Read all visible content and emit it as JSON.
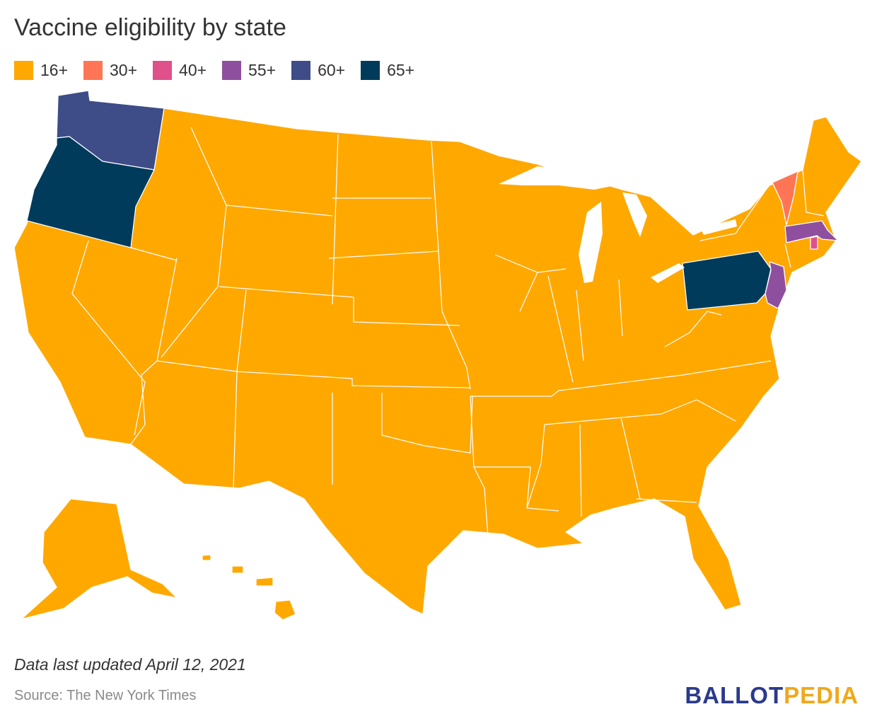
{
  "title": "Vaccine eligibility by state",
  "legend": [
    {
      "label": "16+",
      "color": "#FFA800"
    },
    {
      "label": "30+",
      "color": "#FF7556"
    },
    {
      "label": "40+",
      "color": "#E0508A"
    },
    {
      "label": "55+",
      "color": "#8E4F9E"
    },
    {
      "label": "60+",
      "color": "#3E4C87"
    },
    {
      "label": "65+",
      "color": "#003B5C"
    }
  ],
  "categories": {
    "Washington": "60+",
    "Oregon": "65+",
    "Pennsylvania": "65+",
    "Vermont": "30+",
    "Massachusetts": "55+",
    "New Jersey": "55+",
    "Rhode Island": "40+",
    "default": "16+"
  },
  "note": "Data last updated April 12, 2021",
  "source": "Source: The New York Times",
  "logo": {
    "part1": "BALLOT",
    "part2": "PEDIA"
  }
}
